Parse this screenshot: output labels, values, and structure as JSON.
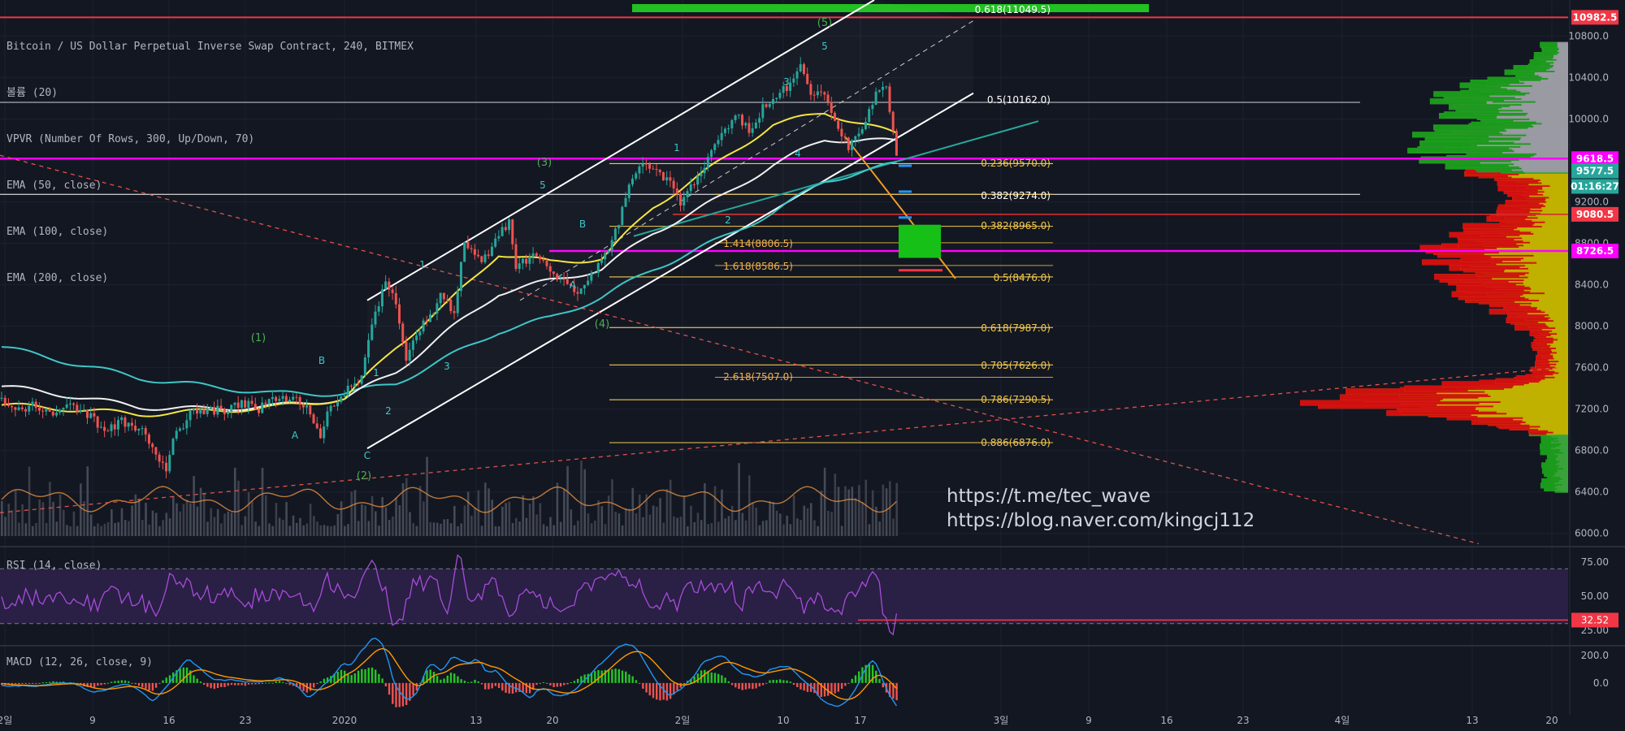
{
  "legend": {
    "symbol": "Bitcoin / US Dollar Perpetual Inverse Swap Contract, 240, BITMEX",
    "volume": "볼륨 (20)",
    "vpvr": "VPVR (Number Of Rows, 300, Up/Down, 70)",
    "ema50": "EMA (50, close)",
    "ema100": "EMA (100, close)",
    "ema200": "EMA (200, close)"
  },
  "links": [
    "https://t.me/tec_wave",
    "https://blog.naver.com/kingcj112"
  ],
  "colors": {
    "background": "#131722",
    "up": "#ef5350",
    "down": "#26a69a",
    "grid": "#1e2230",
    "ema50": "#f5e642",
    "ema100": "#f0f0f0",
    "ema200": "#3ec7c7",
    "magenta": "#ff00ff",
    "fib": "#f2c94c",
    "wave": "#4caf50",
    "rsi": "#9c27b0",
    "macd": "#2196f3",
    "signal": "#ff9800"
  },
  "chart_data": [
    {
      "type": "candlestick",
      "title": "Bitcoin / US Dollar Perpetual Inverse Swap Contract, 240, BITMEX",
      "x_tick_labels": [
        "2일",
        "9",
        "16",
        "23",
        "2020",
        "13",
        "20",
        "2일",
        "10",
        "17",
        "3일",
        "9",
        "16",
        "23",
        "4일",
        "13",
        "20"
      ],
      "y_tick_labels": [
        "10800.0",
        "10400.0",
        "10000.0",
        "9600.0",
        "9200.0",
        "8800.0",
        "8400.0",
        "8000.0",
        "7600.0",
        "7200.0",
        "6800.0",
        "6400.0",
        "6000.0"
      ],
      "ylim": [
        5880,
        11150
      ],
      "price_path": [
        [
          0,
          7300
        ],
        [
          5,
          7200
        ],
        [
          10,
          7240
        ],
        [
          15,
          7160
        ],
        [
          20,
          7250
        ],
        [
          25,
          7150
        ],
        [
          30,
          7000
        ],
        [
          35,
          7080
        ],
        [
          40,
          7020
        ],
        [
          45,
          6800
        ],
        [
          48,
          6570
        ],
        [
          50,
          6900
        ],
        [
          55,
          7150
        ],
        [
          60,
          7200
        ],
        [
          65,
          7180
        ],
        [
          70,
          7270
        ],
        [
          75,
          7200
        ],
        [
          80,
          7300
        ],
        [
          85,
          7320
        ],
        [
          90,
          7180
        ],
        [
          93,
          6900
        ],
        [
          95,
          7180
        ],
        [
          100,
          7360
        ],
        [
          105,
          7500
        ],
        [
          108,
          8000
        ],
        [
          112,
          8450
        ],
        [
          115,
          8200
        ],
        [
          118,
          7700
        ],
        [
          121,
          7950
        ],
        [
          125,
          8100
        ],
        [
          128,
          8300
        ],
        [
          132,
          8150
        ],
        [
          135,
          8800
        ],
        [
          140,
          8600
        ],
        [
          145,
          8900
        ],
        [
          148,
          9000
        ],
        [
          150,
          8550
        ],
        [
          155,
          8700
        ],
        [
          160,
          8550
        ],
        [
          165,
          8400
        ],
        [
          168,
          8350
        ],
        [
          172,
          8500
        ],
        [
          178,
          8800
        ],
        [
          183,
          9350
        ],
        [
          186,
          9520
        ],
        [
          188,
          9550
        ],
        [
          192,
          9450
        ],
        [
          196,
          9350
        ],
        [
          198,
          9200
        ],
        [
          201,
          9350
        ],
        [
          205,
          9550
        ],
        [
          210,
          9850
        ],
        [
          214,
          10050
        ],
        [
          218,
          9900
        ],
        [
          222,
          10100
        ],
        [
          226,
          10200
        ],
        [
          230,
          10350
        ],
        [
          233,
          10500
        ],
        [
          236,
          10280
        ],
        [
          240,
          10200
        ],
        [
          243,
          10000
        ],
        [
          247,
          9720
        ],
        [
          251,
          9880
        ],
        [
          255,
          10250
        ],
        [
          258,
          10300
        ],
        [
          261,
          9618.5
        ]
      ],
      "ema50": [
        [
          0,
          7240
        ],
        [
          20,
          7200
        ],
        [
          40,
          7150
        ],
        [
          60,
          7180
        ],
        [
          80,
          7220
        ],
        [
          100,
          7300
        ],
        [
          115,
          7800
        ],
        [
          130,
          8220
        ],
        [
          145,
          8700
        ],
        [
          160,
          8620
        ],
        [
          175,
          8650
        ],
        [
          190,
          9150
        ],
        [
          210,
          9600
        ],
        [
          225,
          9950
        ],
        [
          240,
          10060
        ],
        [
          252,
          9950
        ],
        [
          261,
          9850
        ]
      ],
      "ema100": [
        [
          0,
          7420
        ],
        [
          20,
          7330
        ],
        [
          40,
          7220
        ],
        [
          60,
          7200
        ],
        [
          80,
          7230
        ],
        [
          100,
          7300
        ],
        [
          115,
          7560
        ],
        [
          130,
          7950
        ],
        [
          145,
          8320
        ],
        [
          160,
          8440
        ],
        [
          175,
          8550
        ],
        [
          190,
          8900
        ],
        [
          210,
          9250
        ],
        [
          225,
          9560
        ],
        [
          240,
          9800
        ],
        [
          252,
          9800
        ],
        [
          261,
          9780
        ]
      ],
      "ema200": [
        [
          0,
          7800
        ],
        [
          20,
          7650
        ],
        [
          40,
          7500
        ],
        [
          60,
          7420
        ],
        [
          80,
          7350
        ],
        [
          100,
          7350
        ],
        [
          115,
          7450
        ],
        [
          130,
          7700
        ],
        [
          145,
          7950
        ],
        [
          160,
          8080
        ],
        [
          175,
          8280
        ],
        [
          190,
          8550
        ],
        [
          210,
          8850
        ],
        [
          225,
          9100
        ],
        [
          240,
          9400
        ],
        [
          252,
          9500
        ],
        [
          261,
          9570
        ]
      ],
      "fib_retracement": [
        {
          "ratio": "0.618",
          "price": 11049.5
        },
        {
          "ratio": "0.5",
          "price": 10162.0
        },
        {
          "ratio": "0.382",
          "price": 9274.0
        },
        {
          "ratio": "0.236",
          "price": 9570.0
        },
        {
          "ratio": "0.382",
          "price": 8965.0
        },
        {
          "ratio": "0.5",
          "price": 8476.0
        },
        {
          "ratio": "0.618",
          "price": 7987.0
        },
        {
          "ratio": "0.705",
          "price": 7626.0
        },
        {
          "ratio": "0.786",
          "price": 7290.5
        },
        {
          "ratio": "0.886",
          "price": 6876.0
        }
      ],
      "fib_extension": [
        {
          "ratio": "1.414",
          "price": 8806.5
        },
        {
          "ratio": "1.618",
          "price": 8586.5
        },
        {
          "ratio": "2.618",
          "price": 7507.0
        }
      ],
      "price_markers": [
        {
          "label": "10982.5",
          "color": "#f23645"
        },
        {
          "label": "9618.5",
          "color": "#ff00ff"
        },
        {
          "label": "9577.5",
          "color": "#26a69a"
        },
        {
          "label": "01:16:27",
          "color": "#26a69a"
        },
        {
          "label": "9080.5",
          "color": "#f23645"
        },
        {
          "label": "8726.5",
          "color": "#ff00ff"
        }
      ],
      "wave_labels": [
        "(1)",
        "(2)",
        "(3)",
        "(4)",
        "(5)",
        "1",
        "2",
        "3",
        "4",
        "5",
        "A",
        "B",
        "C"
      ]
    },
    {
      "type": "line",
      "title": "RSI (14, close)",
      "y_tick_labels": [
        "75.00",
        "50.00",
        "25.00"
      ],
      "ylim": [
        15,
        85
      ],
      "bands": [
        30,
        70
      ],
      "last_value_label": "32.52"
    },
    {
      "type": "line",
      "title": "MACD (12, 26, close, 9)",
      "y_tick_labels": [
        "200.0",
        "0.0"
      ],
      "ylim": [
        -220,
        260
      ]
    }
  ]
}
